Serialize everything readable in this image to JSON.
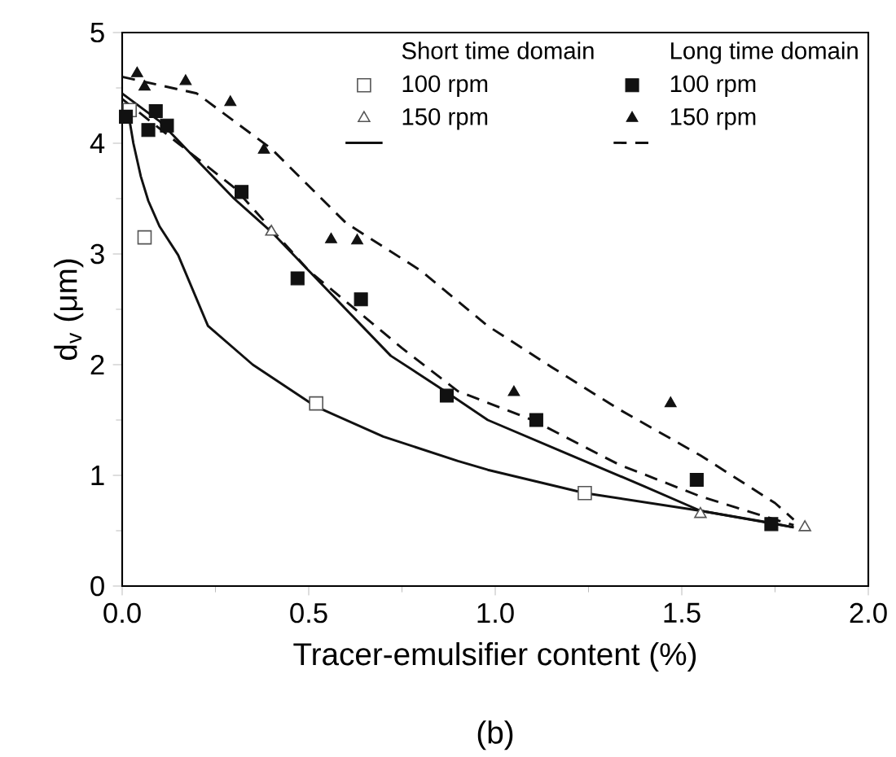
{
  "chart_data": {
    "type": "scatter",
    "xlabel": "Tracer-emulsifier content (%)",
    "ylabel": "d$_{v}$ (μm)",
    "xlim": [
      0,
      2.0
    ],
    "xticks": [
      {
        "value": 0,
        "label": "0.0"
      },
      0.5,
      {
        "value": 1,
        "label": "1.0"
      },
      1.5,
      {
        "value": 2,
        "label": "2.0"
      }
    ],
    "ylim": [
      0,
      5
    ],
    "yticks": [
      0,
      1,
      2,
      3,
      4,
      5
    ],
    "legend": "top right",
    "annotations": [
      "Short time domain",
      "Long time domain",
      "(b)"
    ],
    "series": [
      {
        "name": "100 rpm",
        "marker": "square",
        "color": "#555555",
        "x": [
          0.02,
          0.06,
          0.52,
          1.24
        ],
        "values": [
          4.3,
          3.15,
          1.65,
          0.84
        ]
      },
      {
        "name": "150 rpm",
        "marker": "triangle",
        "color": "#555555",
        "x": [
          0.4,
          1.55,
          1.83
        ],
        "values": [
          3.2,
          0.65,
          0.53
        ]
      },
      {
        "name": "100 rpm",
        "marker": "square",
        "color": "#111111",
        "x": [
          0.01,
          0.07,
          0.09,
          0.12,
          0.32,
          0.47,
          0.64,
          0.87,
          1.11,
          1.54,
          1.74
        ],
        "values": [
          4.24,
          4.12,
          4.29,
          4.16,
          3.56,
          2.78,
          2.59,
          1.72,
          1.5,
          0.96,
          0.56
        ]
      },
      {
        "name": "150 rpm",
        "marker": "triangle",
        "color": "#111111",
        "x": [
          0.04,
          0.06,
          0.17,
          0.29,
          0.38,
          0.56,
          0.63,
          1.05,
          1.47
        ],
        "values": [
          4.63,
          4.51,
          4.56,
          4.37,
          3.94,
          3.13,
          3.12,
          1.75,
          1.65
        ]
      },
      {
        "type": "line",
        "line_style": "solid",
        "color": "#111111",
        "x": [
          0.005,
          0.02,
          0.03,
          0.05,
          0.07,
          0.1,
          0.15,
          0.23,
          0.35,
          0.52,
          0.7,
          0.9,
          0.98,
          1.24,
          1.55,
          1.74,
          1.8
        ],
        "values": [
          4.35,
          4.2,
          4.0,
          3.7,
          3.48,
          3.25,
          2.99,
          2.35,
          2.0,
          1.62,
          1.35,
          1.13,
          1.05,
          0.84,
          0.68,
          0.57,
          0.53
        ]
      },
      {
        "type": "line",
        "line_style": "solid",
        "color": "#111111",
        "x": [
          0.0,
          0.1,
          0.2,
          0.3,
          0.4,
          0.5,
          0.72,
          0.87,
          0.98,
          1.19,
          1.4,
          1.55,
          1.8
        ],
        "values": [
          4.45,
          4.2,
          3.85,
          3.5,
          3.2,
          2.85,
          2.08,
          1.75,
          1.5,
          1.2,
          0.9,
          0.68,
          0.53
        ]
      },
      {
        "type": "line",
        "line_style": "dashed",
        "color": "#111111",
        "x": [
          0.0,
          0.15,
          0.3,
          0.5,
          0.75,
          0.9,
          1.1,
          1.33,
          1.55,
          1.75,
          1.8
        ],
        "values": [
          4.4,
          4.0,
          3.6,
          2.85,
          2.15,
          1.76,
          1.5,
          1.1,
          0.81,
          0.6,
          0.55
        ]
      },
      {
        "type": "line",
        "line_style": "dashed",
        "color": "#111111",
        "x": [
          0.0,
          0.2,
          0.4,
          0.6,
          0.8,
          0.98,
          1.15,
          1.33,
          1.55,
          1.75,
          1.8
        ],
        "values": [
          4.6,
          4.45,
          3.95,
          3.28,
          2.85,
          2.35,
          1.98,
          1.6,
          1.18,
          0.75,
          0.6
        ]
      }
    ]
  }
}
